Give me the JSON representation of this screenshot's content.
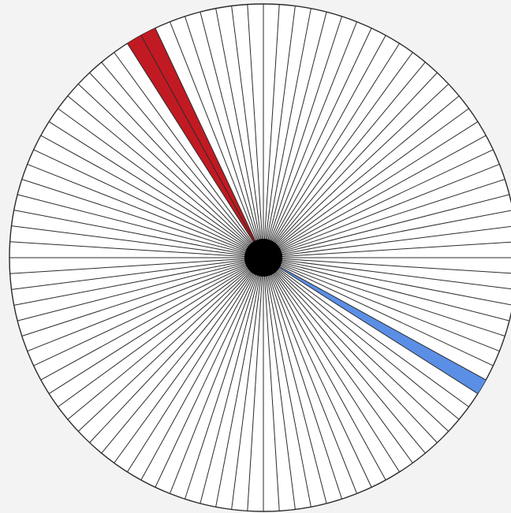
{
  "diagram": {
    "type": "radial-segment-wheel",
    "segment_count": 100,
    "colors": {
      "background": "#f3f3f3",
      "disc_fill": "#ffffff",
      "line": "#2b2b2b",
      "hub": "#000000",
      "highlight_blue": "#5b8fe6",
      "highlight_red": "#c21a22"
    },
    "highlighted_segments": [
      {
        "name": "blue-segment",
        "index": 33,
        "color": "#5b8fe6"
      },
      {
        "name": "red-segment-outer",
        "index": 92,
        "color": "#c21a22"
      },
      {
        "name": "red-segment-inner",
        "index": 91,
        "color": "#c21a22"
      }
    ]
  }
}
